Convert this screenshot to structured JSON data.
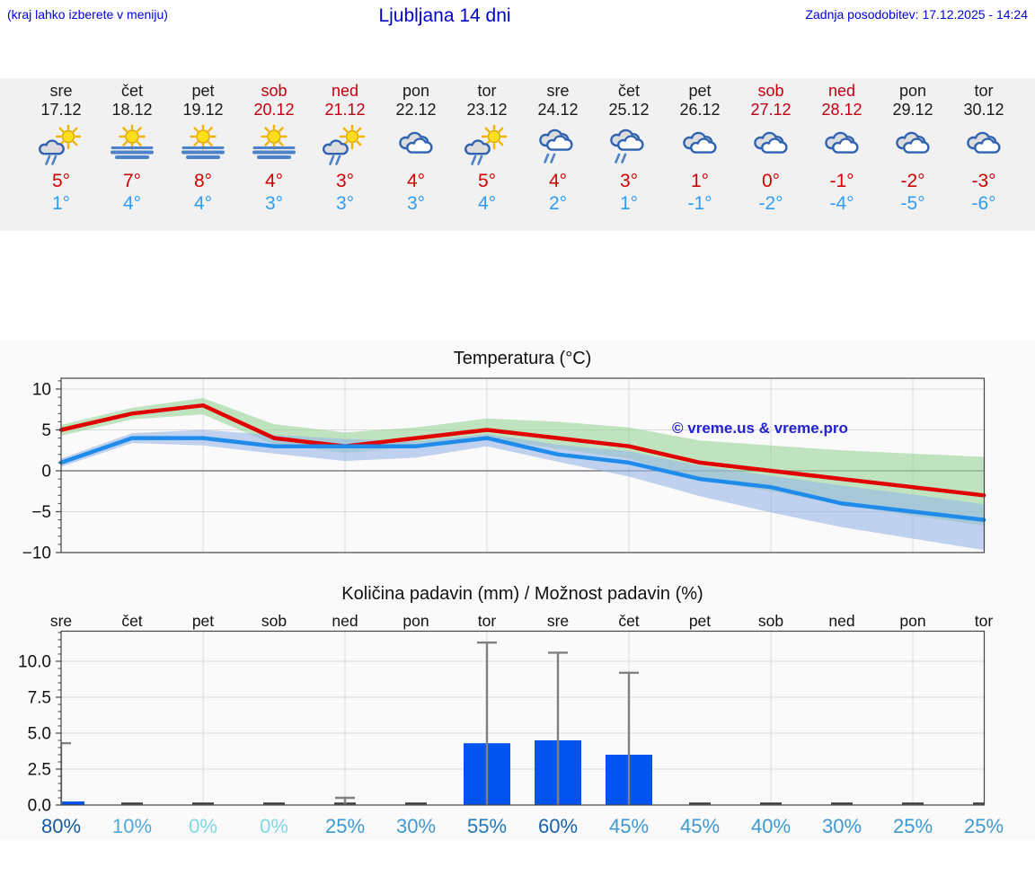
{
  "header": {
    "note": "(kraj lahko izberete v meniju)",
    "title": "Ljubljana 14 dni",
    "updated": "Zadnja posodobitev: 17.12.2025 - 14:24"
  },
  "forecast": {
    "days": [
      {
        "name": "sre",
        "date": "17.12",
        "weekend": false,
        "icon": "sun-cloud-rain",
        "high": "5°",
        "low": "1°"
      },
      {
        "name": "čet",
        "date": "18.12",
        "weekend": false,
        "icon": "sun-fog",
        "high": "7°",
        "low": "4°"
      },
      {
        "name": "pet",
        "date": "19.12",
        "weekend": false,
        "icon": "sun-fog",
        "high": "8°",
        "low": "4°"
      },
      {
        "name": "sob",
        "date": "20.12",
        "weekend": true,
        "icon": "sun-fog",
        "high": "4°",
        "low": "3°"
      },
      {
        "name": "ned",
        "date": "21.12",
        "weekend": true,
        "icon": "sun-cloud-rain",
        "high": "3°",
        "low": "3°"
      },
      {
        "name": "pon",
        "date": "22.12",
        "weekend": false,
        "icon": "cloudy",
        "high": "4°",
        "low": "3°"
      },
      {
        "name": "tor",
        "date": "23.12",
        "weekend": false,
        "icon": "sun-cloud-rain",
        "high": "5°",
        "low": "4°"
      },
      {
        "name": "sre",
        "date": "24.12",
        "weekend": false,
        "icon": "cloudy-rain",
        "high": "4°",
        "low": "2°"
      },
      {
        "name": "čet",
        "date": "25.12",
        "weekend": false,
        "icon": "cloudy-rain",
        "high": "3°",
        "low": "1°"
      },
      {
        "name": "pet",
        "date": "26.12",
        "weekend": false,
        "icon": "cloudy",
        "high": "1°",
        "low": "-1°"
      },
      {
        "name": "sob",
        "date": "27.12",
        "weekend": true,
        "icon": "cloudy",
        "high": "0°",
        "low": "-2°"
      },
      {
        "name": "ned",
        "date": "28.12",
        "weekend": true,
        "icon": "cloudy",
        "high": "-1°",
        "low": "-4°"
      },
      {
        "name": "pon",
        "date": "29.12",
        "weekend": false,
        "icon": "cloudy",
        "high": "-2°",
        "low": "-5°"
      },
      {
        "name": "tor",
        "date": "30.12",
        "weekend": false,
        "icon": "cloudy",
        "high": "-3°",
        "low": "-6°"
      }
    ]
  },
  "chart_data": [
    {
      "type": "line",
      "title": "Temperatura (°C)",
      "watermark": "© vreme.us & vreme.pro",
      "categories": [
        "17.12",
        "18.12",
        "19.12",
        "20.12",
        "21.12",
        "22.12",
        "23.12",
        "24.12",
        "25.12",
        "26.12",
        "27.12",
        "28.12",
        "29.12",
        "30.12"
      ],
      "yticks": [
        "10",
        "5",
        "0",
        "−5",
        "−10"
      ],
      "ytick_values": [
        10,
        5,
        0,
        -5,
        -10
      ],
      "ylim": [
        -10,
        11.3
      ],
      "grid": true,
      "legend": "none",
      "series": [
        {
          "name": "max-temperature",
          "color": "#e10000",
          "values": [
            5,
            7,
            8,
            4,
            3,
            4,
            5,
            4,
            3,
            1,
            0,
            -1,
            -2,
            -3
          ]
        },
        {
          "name": "min-temperature",
          "color": "#1f8ceb",
          "values": [
            1,
            4,
            4,
            3,
            3,
            3,
            4,
            2,
            1,
            -1,
            -2,
            -4,
            -5,
            -6
          ]
        }
      ],
      "bands": [
        {
          "series": "max-temperature",
          "color": "#97d497",
          "upper": [
            5.6,
            7.7,
            8.9,
            5.7,
            4.7,
            5.3,
            6.4,
            6.0,
            5.3,
            3.7,
            3.1,
            2.5,
            2.1,
            1.7
          ],
          "lower": [
            4.3,
            6.3,
            6.9,
            3.2,
            2.2,
            2.9,
            3.9,
            2.7,
            1.5,
            -1.1,
            -2.5,
            -4.1,
            -5.5,
            -6.7
          ]
        },
        {
          "series": "min-temperature",
          "color": "#98b6e8",
          "upper": [
            1.5,
            4.6,
            5.0,
            4.4,
            3.9,
            3.6,
            4.5,
            3.2,
            2.4,
            0.6,
            -0.6,
            -1.8,
            -2.9,
            -4.1
          ],
          "lower": [
            0.5,
            3.4,
            3.1,
            2.1,
            1.2,
            1.6,
            3.0,
            1.1,
            -0.7,
            -3.1,
            -5.1,
            -6.9,
            -8.3,
            -9.7
          ]
        }
      ]
    },
    {
      "type": "bar",
      "title": "Količina padavin (mm) / Možnost padavin (%)",
      "categories": [
        "sre",
        "čet",
        "pet",
        "sob",
        "ned",
        "pon",
        "tor",
        "sre",
        "čet",
        "pet",
        "sob",
        "ned",
        "pon",
        "tor"
      ],
      "values": [
        0.25,
        0,
        0,
        0,
        0,
        0,
        4.3,
        4.5,
        3.5,
        0,
        0,
        0,
        0,
        0
      ],
      "error_max": [
        4.3,
        0,
        0,
        0,
        0.5,
        0,
        11.3,
        10.6,
        9.2,
        0,
        0,
        0,
        0,
        0
      ],
      "probabilities": [
        "80%",
        "10%",
        "0%",
        "0%",
        "25%",
        "30%",
        "55%",
        "60%",
        "45%",
        "45%",
        "40%",
        "30%",
        "25%",
        "25%"
      ],
      "prob_colors": [
        "#15599e",
        "#4ea8da",
        "#7cd9e8",
        "#7cd9e8",
        "#3d99d2",
        "#3d99d2",
        "#2478ba",
        "#1a61a9",
        "#3d99d2",
        "#3d99d2",
        "#3d99d2",
        "#3d99d2",
        "#3d99d2",
        "#3d99d2"
      ],
      "yticks": [
        "0.0",
        "2.5",
        "5.0",
        "7.5",
        "10.0"
      ],
      "ytick_values": [
        0,
        2.5,
        5,
        7.5,
        10
      ],
      "ylim": [
        0,
        12.1
      ],
      "grid": true,
      "bar_color": "#0353f0",
      "whisker_color": "#808080"
    }
  ],
  "colors": {
    "header_blue": "#0000cc",
    "strip_bg": "#f1f1f2",
    "charts_bg": "#fafafa",
    "high_temp_red": "#d40000",
    "low_temp_blue": "#2e9df2",
    "weekend_red": "#c00010",
    "grid_grey": "#d9d9d9",
    "axis_dark": "#444444"
  }
}
